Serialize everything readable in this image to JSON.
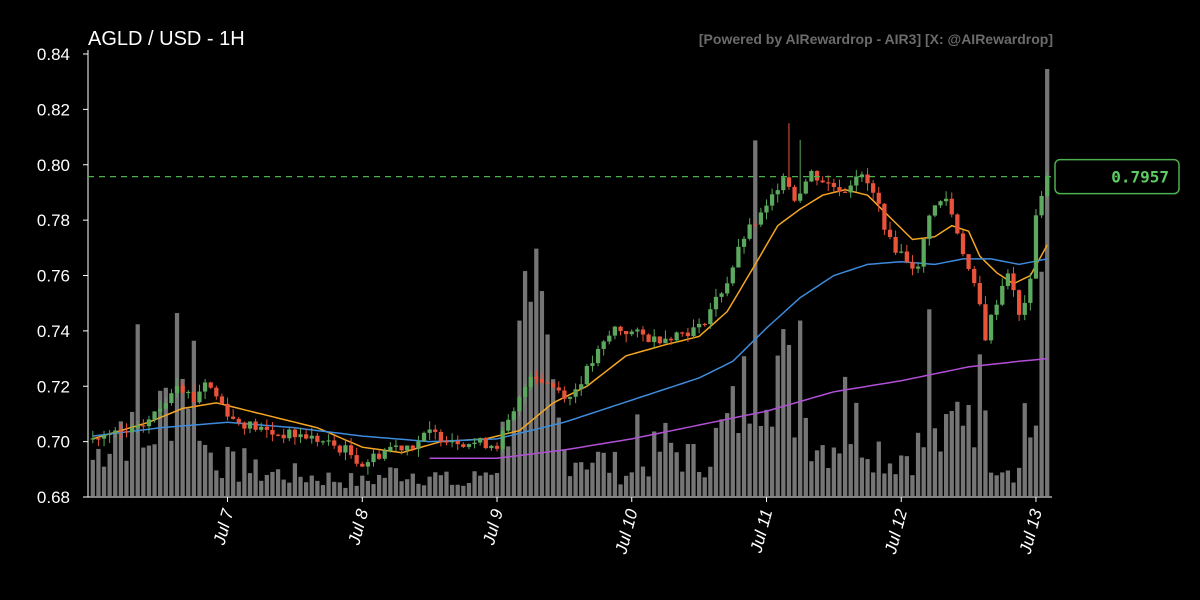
{
  "header": {
    "title": "AGLD / USD - 1H",
    "watermark": "[Powered by AIRewardrop - AIR3] [X: @AIRewardrop]"
  },
  "colors": {
    "up": "#5ba85e",
    "down": "#e8533a",
    "volume": "#8a8a8a",
    "ma_fast": "#f5a623",
    "ma_mid": "#3d8bdc",
    "ma_slow": "#b14fd6",
    "price_line": "#4caf50"
  },
  "chart_data": {
    "type": "candlestick",
    "title": "AGLD / USD - 1H",
    "ylim": [
      0.68,
      0.84
    ],
    "yticks": [
      "0.68",
      "0.70",
      "0.72",
      "0.74",
      "0.76",
      "0.78",
      "0.80",
      "0.82",
      "0.84"
    ],
    "xticks": [
      {
        "label": "Jul 7",
        "index": 24
      },
      {
        "label": "Jul 8",
        "index": 48
      },
      {
        "label": "Jul 9",
        "index": 72
      },
      {
        "label": "Jul 10",
        "index": 96
      },
      {
        "label": "Jul 11",
        "index": 120
      },
      {
        "label": "Jul 12",
        "index": 144
      },
      {
        "label": "Jul 13",
        "index": 168
      }
    ],
    "last_price": "0.7957",
    "last_price_value": 0.7957,
    "close_anchors": [
      [
        0,
        0.701
      ],
      [
        8,
        0.704
      ],
      [
        12,
        0.712
      ],
      [
        15,
        0.722
      ],
      [
        18,
        0.715
      ],
      [
        20,
        0.722
      ],
      [
        25,
        0.708
      ],
      [
        32,
        0.703
      ],
      [
        38,
        0.702
      ],
      [
        45,
        0.697
      ],
      [
        48,
        0.692
      ],
      [
        53,
        0.698
      ],
      [
        57,
        0.699
      ],
      [
        60,
        0.703
      ],
      [
        66,
        0.7
      ],
      [
        72,
        0.699
      ],
      [
        75,
        0.71
      ],
      [
        78,
        0.725
      ],
      [
        82,
        0.72
      ],
      [
        85,
        0.716
      ],
      [
        90,
        0.732
      ],
      [
        93,
        0.741
      ],
      [
        100,
        0.737
      ],
      [
        108,
        0.741
      ],
      [
        113,
        0.758
      ],
      [
        116,
        0.774
      ],
      [
        120,
        0.784
      ],
      [
        123,
        0.797
      ],
      [
        125,
        0.788
      ],
      [
        128,
        0.797
      ],
      [
        131,
        0.793
      ],
      [
        134,
        0.791
      ],
      [
        136,
        0.797
      ],
      [
        138,
        0.793
      ],
      [
        140,
        0.785
      ],
      [
        142,
        0.772
      ],
      [
        145,
        0.766
      ],
      [
        147,
        0.762
      ],
      [
        149,
        0.783
      ],
      [
        152,
        0.788
      ],
      [
        154,
        0.776
      ],
      [
        156,
        0.762
      ],
      [
        158,
        0.749
      ],
      [
        159,
        0.738
      ],
      [
        161,
        0.751
      ],
      [
        163,
        0.762
      ],
      [
        165,
        0.745
      ],
      [
        167,
        0.757
      ],
      [
        168,
        0.783
      ],
      [
        170,
        0.7957
      ]
    ],
    "volume_anchors": [
      [
        0,
        0.01
      ],
      [
        5,
        0.02
      ],
      [
        9,
        0.012
      ],
      [
        14,
        0.028
      ],
      [
        18,
        0.035
      ],
      [
        20,
        0.013
      ],
      [
        26,
        0.007
      ],
      [
        35,
        0.006
      ],
      [
        42,
        0.005
      ],
      [
        48,
        0.004
      ],
      [
        55,
        0.007
      ],
      [
        60,
        0.006
      ],
      [
        66,
        0.003
      ],
      [
        72,
        0.009
      ],
      [
        78,
        0.05
      ],
      [
        84,
        0.012
      ],
      [
        90,
        0.01
      ],
      [
        96,
        0.006
      ],
      [
        102,
        0.014
      ],
      [
        108,
        0.009
      ],
      [
        114,
        0.021
      ],
      [
        118,
        0.034
      ],
      [
        120,
        0.043
      ],
      [
        125,
        0.026
      ],
      [
        130,
        0.014
      ],
      [
        136,
        0.019
      ],
      [
        142,
        0.01
      ],
      [
        148,
        0.014
      ],
      [
        152,
        0.015
      ],
      [
        156,
        0.029
      ],
      [
        160,
        0.012
      ],
      [
        165,
        0.007
      ],
      [
        168,
        0.022
      ],
      [
        170,
        0.04
      ]
    ],
    "volume_spikes": [
      [
        8,
        0.046
      ],
      [
        15,
        0.049
      ],
      [
        27,
        0.013
      ],
      [
        78,
        0.052
      ],
      [
        97,
        0.022
      ],
      [
        118,
        0.095
      ],
      [
        126,
        0.047
      ],
      [
        134,
        0.032
      ],
      [
        149,
        0.05
      ],
      [
        158,
        0.038
      ],
      [
        166,
        0.025
      ],
      [
        169,
        0.06
      ],
      [
        170,
        0.114
      ]
    ],
    "ma_fast_anchors": [
      [
        0,
        0.701
      ],
      [
        10,
        0.707
      ],
      [
        16,
        0.712
      ],
      [
        22,
        0.714
      ],
      [
        30,
        0.71
      ],
      [
        40,
        0.705
      ],
      [
        48,
        0.698
      ],
      [
        55,
        0.696
      ],
      [
        62,
        0.7
      ],
      [
        70,
        0.701
      ],
      [
        76,
        0.704
      ],
      [
        82,
        0.714
      ],
      [
        88,
        0.72
      ],
      [
        95,
        0.731
      ],
      [
        102,
        0.735
      ],
      [
        108,
        0.738
      ],
      [
        113,
        0.747
      ],
      [
        118,
        0.764
      ],
      [
        122,
        0.778
      ],
      [
        126,
        0.784
      ],
      [
        130,
        0.789
      ],
      [
        134,
        0.791
      ],
      [
        138,
        0.789
      ],
      [
        142,
        0.781
      ],
      [
        146,
        0.773
      ],
      [
        150,
        0.774
      ],
      [
        153,
        0.778
      ],
      [
        156,
        0.776
      ],
      [
        158,
        0.767
      ],
      [
        161,
        0.761
      ],
      [
        164,
        0.757
      ],
      [
        167,
        0.76
      ],
      [
        170,
        0.771
      ]
    ],
    "ma_mid_anchors": [
      [
        0,
        0.702
      ],
      [
        12,
        0.705
      ],
      [
        24,
        0.707
      ],
      [
        36,
        0.705
      ],
      [
        48,
        0.702
      ],
      [
        60,
        0.7
      ],
      [
        72,
        0.701
      ],
      [
        84,
        0.707
      ],
      [
        96,
        0.715
      ],
      [
        108,
        0.723
      ],
      [
        114,
        0.729
      ],
      [
        120,
        0.741
      ],
      [
        126,
        0.752
      ],
      [
        132,
        0.76
      ],
      [
        138,
        0.764
      ],
      [
        144,
        0.765
      ],
      [
        150,
        0.764
      ],
      [
        155,
        0.766
      ],
      [
        160,
        0.766
      ],
      [
        165,
        0.764
      ],
      [
        170,
        0.766
      ]
    ],
    "ma_slow_anchors": [
      [
        60,
        0.694
      ],
      [
        72,
        0.694
      ],
      [
        84,
        0.697
      ],
      [
        96,
        0.701
      ],
      [
        108,
        0.706
      ],
      [
        120,
        0.711
      ],
      [
        132,
        0.718
      ],
      [
        144,
        0.722
      ],
      [
        156,
        0.727
      ],
      [
        165,
        0.729
      ],
      [
        170,
        0.73
      ]
    ],
    "volume_scale_max": 0.118,
    "n_candles": 171
  }
}
